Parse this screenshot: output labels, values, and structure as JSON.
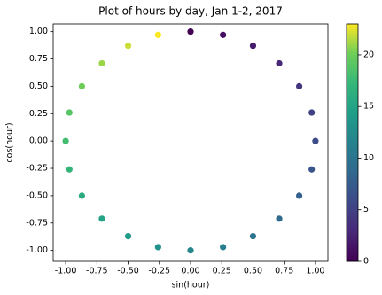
{
  "chart_data": {
    "type": "scatter",
    "title": "Plot of hours by day, Jan 1-2, 2017",
    "xlabel": "sin(hour)",
    "ylabel": "cos(hour)",
    "x": [
      0,
      0.26,
      0.5,
      0.71,
      0.87,
      0.97,
      1,
      0.97,
      0.87,
      0.71,
      0.5,
      0.26,
      0,
      -0.26,
      -0.5,
      -0.71,
      -0.87,
      -0.97,
      -1,
      -0.97,
      -0.87,
      -0.71,
      -0.5,
      -0.26
    ],
    "y": [
      1,
      0.97,
      0.87,
      0.71,
      0.5,
      0.26,
      0,
      -0.26,
      -0.5,
      -0.71,
      -0.87,
      -0.97,
      -1,
      -0.97,
      -0.87,
      -0.71,
      -0.5,
      -0.26,
      0,
      0.26,
      0.5,
      0.71,
      0.87,
      0.97
    ],
    "color_values": [
      0,
      1,
      2,
      3,
      4,
      5,
      6,
      7,
      8,
      9,
      10,
      11,
      12,
      13,
      14,
      15,
      16,
      17,
      18,
      19,
      20,
      21,
      22,
      23
    ],
    "colormap": "viridis",
    "clim": [
      0,
      23
    ],
    "cticks": [
      0,
      5,
      10,
      15,
      20
    ],
    "xlim": [
      -1.1,
      1.1
    ],
    "xticks": [
      {
        "value": -1,
        "label": "-1.00"
      },
      {
        "value": -0.75,
        "label": "-0.75"
      },
      {
        "value": -0.5,
        "label": "-0.50"
      },
      {
        "value": -0.25,
        "label": "-0.25"
      },
      {
        "value": 0,
        "label": "0.00"
      },
      {
        "value": 0.25,
        "label": "0.25"
      },
      {
        "value": 0.5,
        "label": "0.50"
      },
      {
        "value": 0.75,
        "label": "0.75"
      },
      {
        "value": 1,
        "label": "1.00"
      }
    ],
    "ylim": [
      -1.1,
      1.07
    ],
    "yticks": [
      {
        "value": -1,
        "label": "-1.00"
      },
      {
        "value": -0.75,
        "label": "-0.75"
      },
      {
        "value": -0.5,
        "label": "-0.50"
      },
      {
        "value": -0.25,
        "label": "-0.25"
      },
      {
        "value": 0,
        "label": "0.00"
      },
      {
        "value": 0.25,
        "label": "0.25"
      },
      {
        "value": 0.5,
        "label": "0.50"
      },
      {
        "value": 0.75,
        "label": "0.75"
      },
      {
        "value": 1,
        "label": "1.00"
      }
    ],
    "grid": false
  }
}
